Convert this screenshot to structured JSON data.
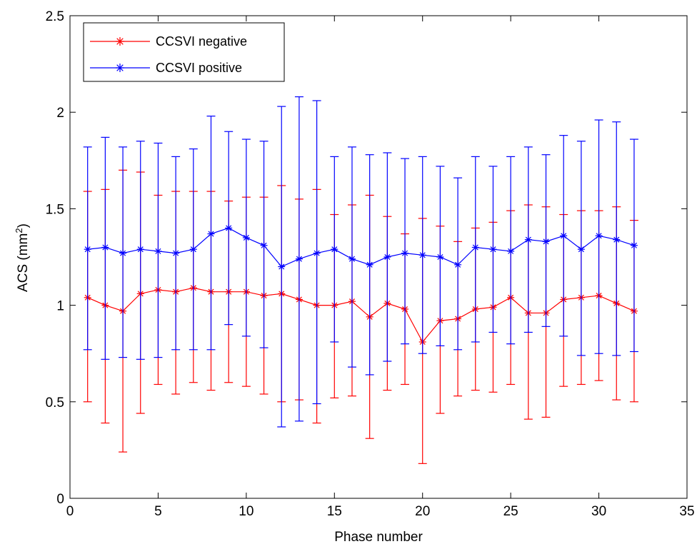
{
  "chart_data": {
    "type": "line",
    "title": "",
    "xlabel": "Phase number",
    "ylabel_main": "ACS (mm",
    "ylabel_sup": "2",
    "ylabel_tail": ")",
    "xlim": [
      0,
      35
    ],
    "ylim": [
      0,
      2.5
    ],
    "xticks": [
      0,
      5,
      10,
      15,
      20,
      25,
      30,
      35
    ],
    "xtick_labels": [
      "0",
      "5",
      "10",
      "15",
      "20",
      "25",
      "30",
      "35"
    ],
    "yticks": [
      0,
      0.5,
      1,
      1.5,
      2,
      2.5
    ],
    "ytick_labels": [
      "0",
      "0.5",
      "1",
      "1.5",
      "2",
      "2.5"
    ],
    "grid": false,
    "legend_position": "top-left",
    "x": [
      1,
      2,
      3,
      4,
      5,
      6,
      7,
      8,
      9,
      10,
      11,
      12,
      13,
      14,
      15,
      16,
      17,
      18,
      19,
      20,
      21,
      22,
      23,
      24,
      25,
      26,
      27,
      28,
      29,
      30,
      31,
      32
    ],
    "series": [
      {
        "name": "CCSVI negative",
        "color": "#ff0000",
        "marker": "asterisk",
        "values": [
          1.04,
          1.0,
          0.97,
          1.06,
          1.08,
          1.07,
          1.09,
          1.07,
          1.07,
          1.07,
          1.05,
          1.06,
          1.03,
          1.0,
          1.0,
          1.02,
          0.94,
          1.01,
          0.98,
          0.81,
          0.92,
          0.93,
          0.98,
          0.99,
          1.04,
          0.96,
          0.96,
          1.03,
          1.04,
          1.05,
          1.01,
          0.97
        ],
        "upper": [
          1.59,
          1.6,
          1.7,
          1.69,
          1.57,
          1.59,
          1.59,
          1.59,
          1.54,
          1.56,
          1.56,
          1.62,
          1.55,
          1.6,
          1.47,
          1.52,
          1.57,
          1.46,
          1.37,
          1.45,
          1.41,
          1.33,
          1.4,
          1.43,
          1.49,
          1.52,
          1.51,
          1.47,
          1.49,
          1.49,
          1.51,
          1.44
        ],
        "lower": [
          0.5,
          0.39,
          0.24,
          0.44,
          0.59,
          0.54,
          0.6,
          0.56,
          0.6,
          0.58,
          0.54,
          0.5,
          0.51,
          0.39,
          0.52,
          0.53,
          0.31,
          0.56,
          0.59,
          0.18,
          0.44,
          0.53,
          0.56,
          0.55,
          0.59,
          0.41,
          0.42,
          0.58,
          0.59,
          0.61,
          0.51,
          0.5
        ]
      },
      {
        "name": "CCSVI positive",
        "color": "#0000ff",
        "marker": "asterisk",
        "values": [
          1.29,
          1.3,
          1.27,
          1.29,
          1.28,
          1.27,
          1.29,
          1.37,
          1.4,
          1.35,
          1.31,
          1.2,
          1.24,
          1.27,
          1.29,
          1.24,
          1.21,
          1.25,
          1.27,
          1.26,
          1.25,
          1.21,
          1.3,
          1.29,
          1.28,
          1.34,
          1.33,
          1.36,
          1.29,
          1.36,
          1.34,
          1.31
        ],
        "upper": [
          1.82,
          1.87,
          1.82,
          1.85,
          1.84,
          1.77,
          1.81,
          1.98,
          1.9,
          1.86,
          1.85,
          2.03,
          2.08,
          2.06,
          1.77,
          1.82,
          1.78,
          1.79,
          1.76,
          1.77,
          1.72,
          1.66,
          1.77,
          1.72,
          1.77,
          1.82,
          1.78,
          1.88,
          1.85,
          1.96,
          1.95,
          1.86
        ],
        "lower": [
          0.77,
          0.72,
          0.73,
          0.72,
          0.73,
          0.77,
          0.77,
          0.77,
          0.9,
          0.84,
          0.78,
          0.37,
          0.4,
          0.49,
          0.81,
          0.68,
          0.64,
          0.71,
          0.8,
          0.75,
          0.79,
          0.77,
          0.81,
          0.86,
          0.8,
          0.86,
          0.89,
          0.84,
          0.74,
          0.75,
          0.74,
          0.76
        ]
      }
    ]
  }
}
